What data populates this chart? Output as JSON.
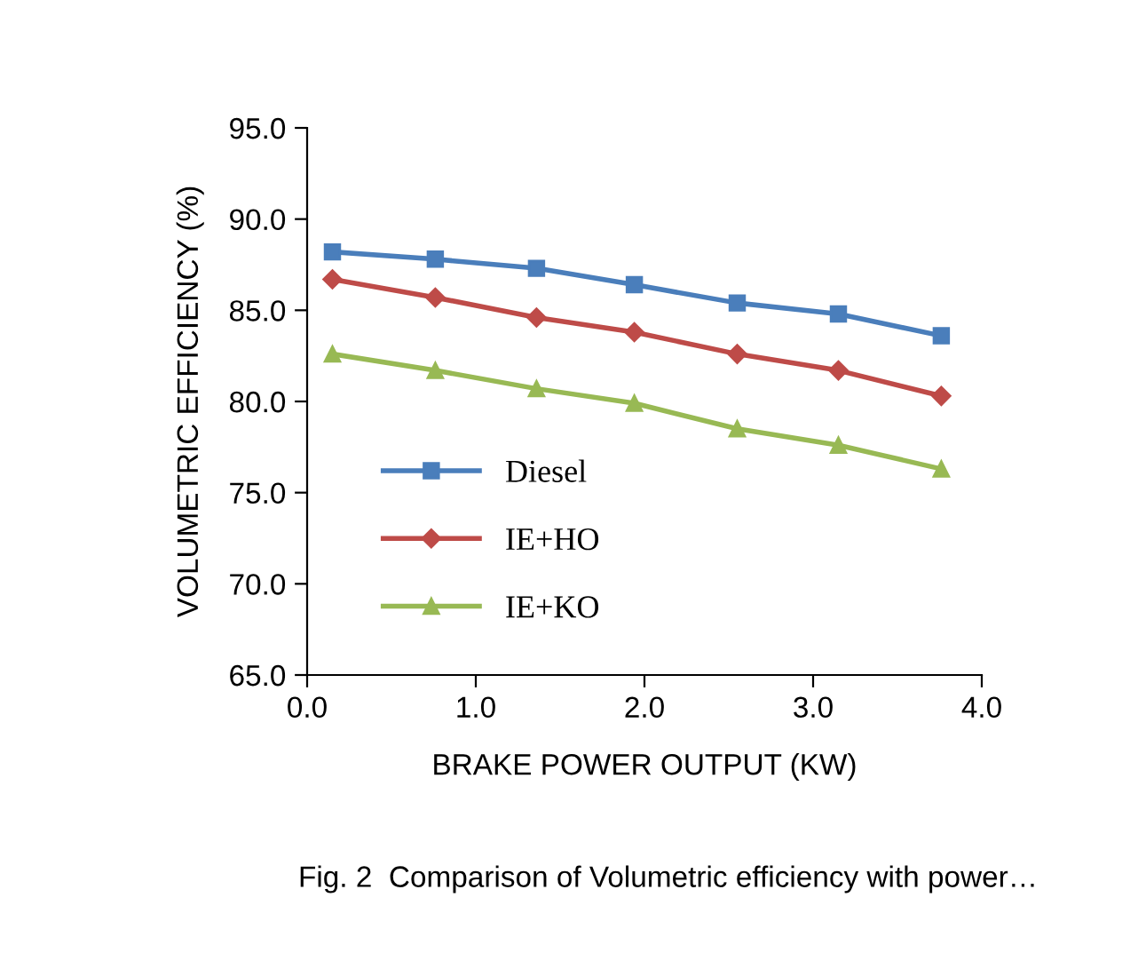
{
  "chart_data": {
    "type": "line",
    "xlabel": "BRAKE POWER OUTPUT (KW)",
    "ylabel": "VOLUMETRIC EFFICIENCY (%)",
    "x": [
      0.15,
      0.76,
      1.36,
      1.94,
      2.55,
      3.15,
      3.76
    ],
    "series": [
      {
        "name": "Diesel",
        "color": "#4a7ebb",
        "marker": "square",
        "values": [
          88.2,
          87.8,
          87.3,
          86.4,
          85.4,
          84.8,
          83.6
        ]
      },
      {
        "name": "IE+HO",
        "color": "#be4b48",
        "marker": "diamond",
        "values": [
          86.7,
          85.7,
          84.6,
          83.8,
          82.6,
          81.7,
          80.3
        ]
      },
      {
        "name": "IE+KO",
        "color": "#98b954",
        "marker": "triangle",
        "values": [
          82.6,
          81.7,
          80.7,
          79.9,
          78.5,
          77.6,
          76.3
        ]
      }
    ],
    "xlim": [
      0,
      4
    ],
    "xticks": [
      {
        "value": 0,
        "label": "0.0"
      },
      {
        "value": 1,
        "label": "1.0"
      },
      {
        "value": 2,
        "label": "2.0"
      },
      {
        "value": 3,
        "label": "3.0"
      },
      {
        "value": 4,
        "label": "4.0"
      }
    ],
    "ylim": [
      65,
      95
    ],
    "yticks": [
      {
        "value": 65,
        "label": "65.0"
      },
      {
        "value": 70,
        "label": "70.0"
      },
      {
        "value": 75,
        "label": "75.0"
      },
      {
        "value": 80,
        "label": "80.0"
      },
      {
        "value": 85,
        "label": "85.0"
      },
      {
        "value": 90,
        "label": "90.0"
      },
      {
        "value": 95,
        "label": "95.0"
      }
    ],
    "grid": false,
    "legend": "bottom left",
    "line_style": "solid",
    "annotations": [
      "Fig. 2  Comparison of Volumetric efficiency with power…"
    ]
  }
}
